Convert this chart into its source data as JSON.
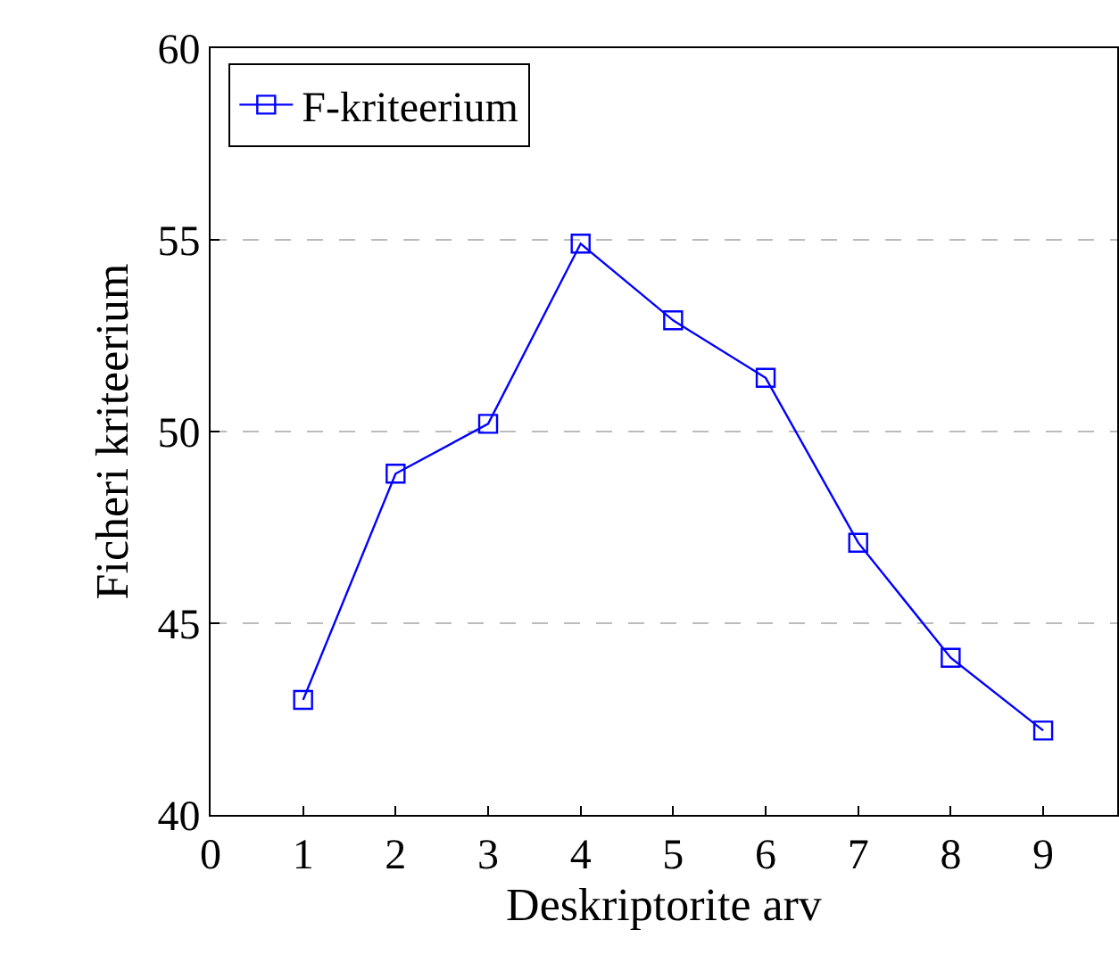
{
  "chart_data": {
    "type": "line",
    "xlabel": "Deskriptorite arv",
    "ylabel": "Ficheri kriteerium",
    "x": [
      1,
      2,
      3,
      4,
      5,
      6,
      7,
      8,
      9
    ],
    "series": [
      {
        "name": "F-kriteerium",
        "color": "#0000ff",
        "values": [
          43.0,
          48.9,
          50.2,
          54.9,
          52.9,
          51.4,
          47.1,
          44.1,
          42.2
        ]
      }
    ],
    "xlim": [
      0,
      9.8
    ],
    "xticks": [
      0,
      1,
      2,
      3,
      4,
      5,
      6,
      7,
      8,
      9
    ],
    "ylim": [
      40,
      60
    ],
    "yticks": [
      40,
      45,
      50,
      55,
      60
    ],
    "grid": "y",
    "legend": "top left",
    "marker": "square",
    "line_style": "solid"
  }
}
